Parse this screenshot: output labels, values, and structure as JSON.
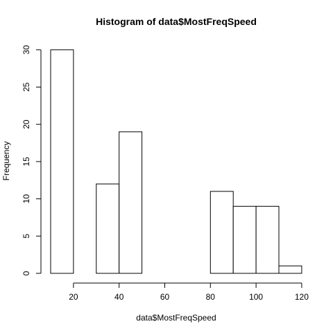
{
  "chart_data": {
    "type": "bar",
    "title": "Histogram of data$MostFreqSpeed",
    "xlabel": "data$MostFreqSpeed",
    "ylabel": "Frequency",
    "bins": [
      {
        "start": 10,
        "end": 20,
        "count": 30
      },
      {
        "start": 20,
        "end": 30,
        "count": 0
      },
      {
        "start": 30,
        "end": 40,
        "count": 12
      },
      {
        "start": 40,
        "end": 50,
        "count": 19
      },
      {
        "start": 50,
        "end": 60,
        "count": 0
      },
      {
        "start": 60,
        "end": 70,
        "count": 0
      },
      {
        "start": 70,
        "end": 80,
        "count": 0
      },
      {
        "start": 80,
        "end": 90,
        "count": 11
      },
      {
        "start": 90,
        "end": 100,
        "count": 9
      },
      {
        "start": 100,
        "end": 110,
        "count": 9
      },
      {
        "start": 110,
        "end": 120,
        "count": 1
      }
    ],
    "xlim": [
      10,
      120
    ],
    "ylim": [
      0,
      30
    ],
    "x_ticks": [
      "20",
      "40",
      "60",
      "80",
      "100",
      "120"
    ],
    "y_ticks": [
      "0",
      "5",
      "10",
      "15",
      "20",
      "25",
      "30"
    ],
    "grid": false,
    "legend": "none",
    "bar_fill": "#ffffff",
    "bar_stroke": "#000000"
  }
}
